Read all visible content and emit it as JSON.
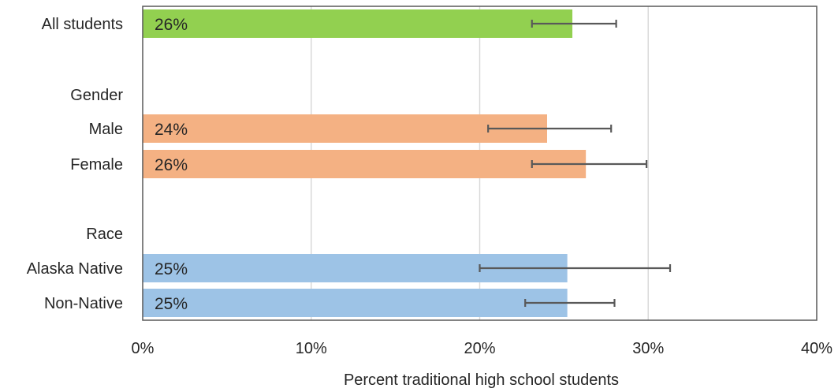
{
  "chart_data": {
    "type": "bar",
    "orientation": "horizontal",
    "xlabel": "Percent traditional high school students",
    "xlim": [
      0,
      40
    ],
    "xticks": [
      "0%",
      "10%",
      "20%",
      "30%",
      "40%"
    ],
    "xtick_values": [
      0,
      10,
      20,
      30,
      40
    ],
    "grid": true,
    "rows": [
      {
        "label": "All students",
        "kind": "bar",
        "value": 25.5,
        "value_label": "26%",
        "error_low": 23.1,
        "error_high": 28.1,
        "color": "#92d050"
      },
      {
        "label": "",
        "kind": "spacer"
      },
      {
        "label": "Gender",
        "kind": "header"
      },
      {
        "label": "Male",
        "kind": "bar",
        "value": 24.0,
        "value_label": "24%",
        "error_low": 20.5,
        "error_high": 27.8,
        "color": "#f4b183"
      },
      {
        "label": "Female",
        "kind": "bar",
        "value": 26.3,
        "value_label": "26%",
        "error_low": 23.1,
        "error_high": 29.9,
        "color": "#f4b183"
      },
      {
        "label": "",
        "kind": "spacer"
      },
      {
        "label": "Race",
        "kind": "header"
      },
      {
        "label": "Alaska Native",
        "kind": "bar",
        "value": 25.2,
        "value_label": "25%",
        "error_low": 20.0,
        "error_high": 31.3,
        "color": "#9dc3e6"
      },
      {
        "label": "Non-Native",
        "kind": "bar",
        "value": 25.2,
        "value_label": "25%",
        "error_low": 22.7,
        "error_high": 28.0,
        "color": "#9dc3e6"
      }
    ]
  }
}
